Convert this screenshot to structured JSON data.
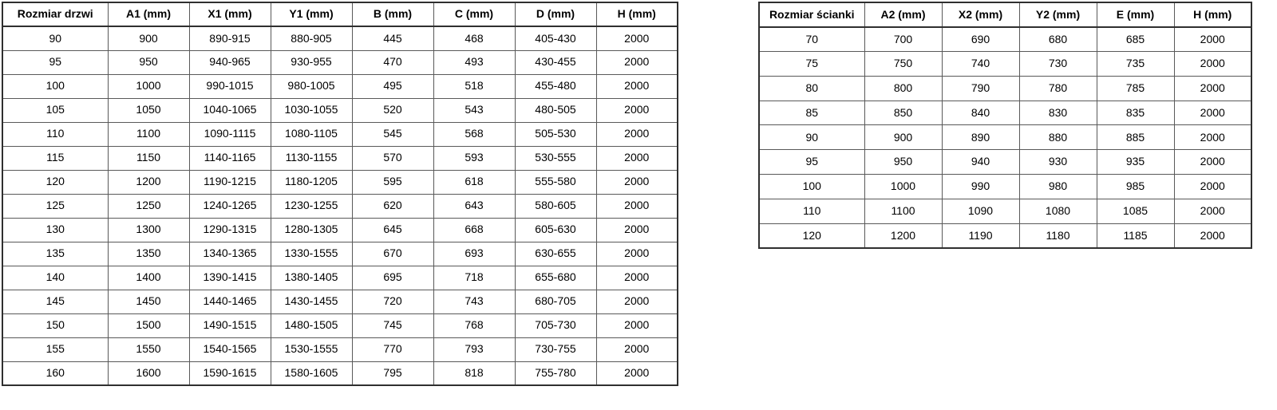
{
  "page": {
    "background": "#ffffff",
    "text_color": "#000000",
    "inner_border_color": "#595959",
    "outer_border_color": "#2f2f2f"
  },
  "door_table": {
    "title": "door-sizes-table",
    "headers": [
      "Rozmiar drzwi",
      "A1 (mm)",
      "X1 (mm)",
      "Y1 (mm)",
      "B (mm)",
      "C (mm)",
      "D (mm)",
      "H (mm)"
    ],
    "rows": [
      [
        "90",
        "900",
        "890-915",
        "880-905",
        "445",
        "468",
        "405-430",
        "2000"
      ],
      [
        "95",
        "950",
        "940-965",
        "930-955",
        "470",
        "493",
        "430-455",
        "2000"
      ],
      [
        "100",
        "1000",
        "990-1015",
        "980-1005",
        "495",
        "518",
        "455-480",
        "2000"
      ],
      [
        "105",
        "1050",
        "1040-1065",
        "1030-1055",
        "520",
        "543",
        "480-505",
        "2000"
      ],
      [
        "110",
        "1100",
        "1090-1115",
        "1080-1105",
        "545",
        "568",
        "505-530",
        "2000"
      ],
      [
        "115",
        "1150",
        "1140-1165",
        "1130-1155",
        "570",
        "593",
        "530-555",
        "2000"
      ],
      [
        "120",
        "1200",
        "1190-1215",
        "1180-1205",
        "595",
        "618",
        "555-580",
        "2000"
      ],
      [
        "125",
        "1250",
        "1240-1265",
        "1230-1255",
        "620",
        "643",
        "580-605",
        "2000"
      ],
      [
        "130",
        "1300",
        "1290-1315",
        "1280-1305",
        "645",
        "668",
        "605-630",
        "2000"
      ],
      [
        "135",
        "1350",
        "1340-1365",
        "1330-1555",
        "670",
        "693",
        "630-655",
        "2000"
      ],
      [
        "140",
        "1400",
        "1390-1415",
        "1380-1405",
        "695",
        "718",
        "655-680",
        "2000"
      ],
      [
        "145",
        "1450",
        "1440-1465",
        "1430-1455",
        "720",
        "743",
        "680-705",
        "2000"
      ],
      [
        "150",
        "1500",
        "1490-1515",
        "1480-1505",
        "745",
        "768",
        "705-730",
        "2000"
      ],
      [
        "155",
        "1550",
        "1540-1565",
        "1530-1555",
        "770",
        "793",
        "730-755",
        "2000"
      ],
      [
        "160",
        "1600",
        "1590-1615",
        "1580-1605",
        "795",
        "818",
        "755-780",
        "2000"
      ]
    ]
  },
  "panel_table": {
    "title": "wall-panel-sizes-table",
    "headers": [
      "Rozmiar ścianki",
      "A2 (mm)",
      "X2 (mm)",
      "Y2 (mm)",
      "E (mm)",
      "H (mm)"
    ],
    "rows": [
      [
        "70",
        "700",
        "690",
        "680",
        "685",
        "2000"
      ],
      [
        "75",
        "750",
        "740",
        "730",
        "735",
        "2000"
      ],
      [
        "80",
        "800",
        "790",
        "780",
        "785",
        "2000"
      ],
      [
        "85",
        "850",
        "840",
        "830",
        "835",
        "2000"
      ],
      [
        "90",
        "900",
        "890",
        "880",
        "885",
        "2000"
      ],
      [
        "95",
        "950",
        "940",
        "930",
        "935",
        "2000"
      ],
      [
        "100",
        "1000",
        "990",
        "980",
        "985",
        "2000"
      ],
      [
        "110",
        "1100",
        "1090",
        "1080",
        "1085",
        "2000"
      ],
      [
        "120",
        "1200",
        "1190",
        "1180",
        "1185",
        "2000"
      ]
    ]
  }
}
